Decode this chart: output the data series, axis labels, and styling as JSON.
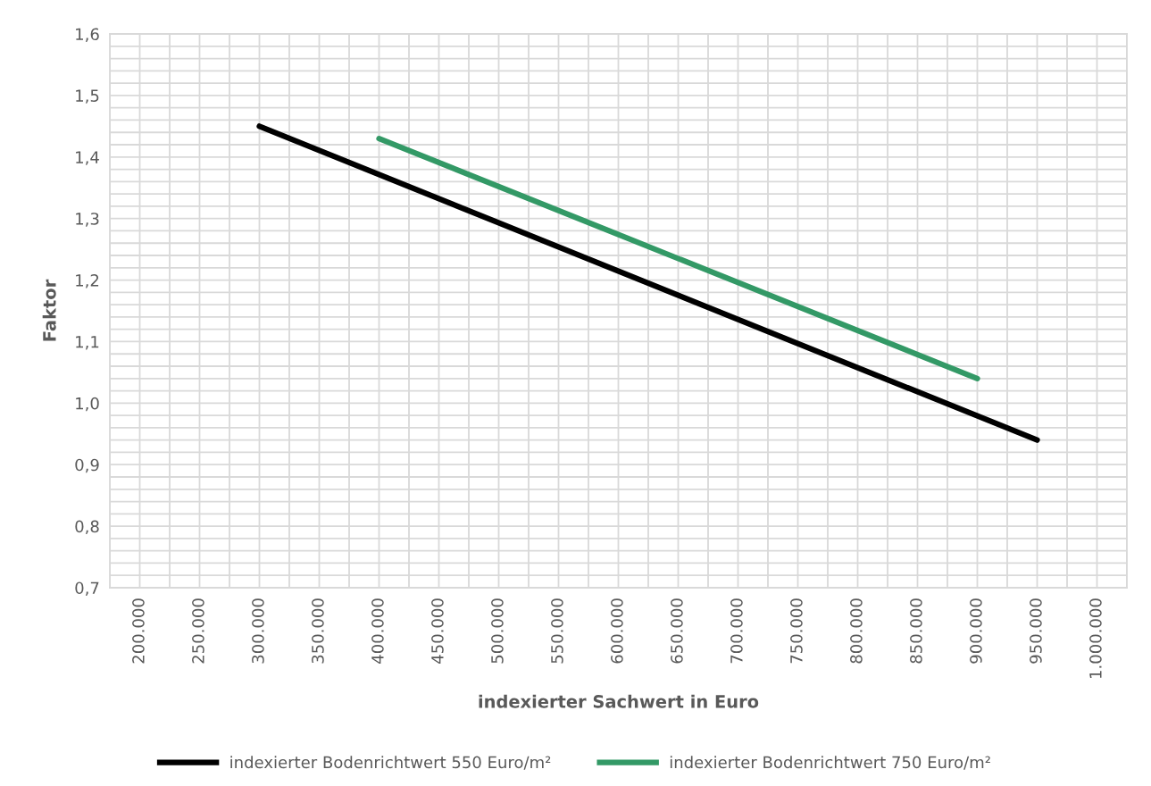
{
  "chart_data": {
    "type": "line",
    "xlabel": "indexierter Sachwert in Euro",
    "ylabel": "Faktor",
    "xlim": [
      175000,
      1025000
    ],
    "xticks": [
      {
        "value": 175000,
        "label": null
      },
      {
        "value": 200000,
        "label": "200.000"
      },
      {
        "value": 225000,
        "label": null
      },
      {
        "value": 250000,
        "label": "250.000"
      },
      {
        "value": 275000,
        "label": null
      },
      {
        "value": 300000,
        "label": "300.000"
      },
      {
        "value": 325000,
        "label": null
      },
      {
        "value": 350000,
        "label": "350.000"
      },
      {
        "value": 375000,
        "label": null
      },
      {
        "value": 400000,
        "label": "400.000"
      },
      {
        "value": 425000,
        "label": null
      },
      {
        "value": 450000,
        "label": "450.000"
      },
      {
        "value": 475000,
        "label": null
      },
      {
        "value": 500000,
        "label": "500.000"
      },
      {
        "value": 525000,
        "label": null
      },
      {
        "value": 550000,
        "label": "550.000"
      },
      {
        "value": 575000,
        "label": null
      },
      {
        "value": 600000,
        "label": "600.000"
      },
      {
        "value": 625000,
        "label": null
      },
      {
        "value": 650000,
        "label": "650.000"
      },
      {
        "value": 675000,
        "label": null
      },
      {
        "value": 700000,
        "label": "700.000"
      },
      {
        "value": 725000,
        "label": null
      },
      {
        "value": 750000,
        "label": "750.000"
      },
      {
        "value": 775000,
        "label": null
      },
      {
        "value": 800000,
        "label": "800.000"
      },
      {
        "value": 825000,
        "label": null
      },
      {
        "value": 850000,
        "label": "850.000"
      },
      {
        "value": 875000,
        "label": null
      },
      {
        "value": 900000,
        "label": "900.000"
      },
      {
        "value": 925000,
        "label": null
      },
      {
        "value": 950000,
        "label": "950.000"
      },
      {
        "value": 975000,
        "label": null
      },
      {
        "value": 1000000,
        "label": "1.000.000"
      },
      {
        "value": 1025000,
        "label": null
      }
    ],
    "ylim": [
      0.7,
      1.6
    ],
    "yticks": [
      {
        "value": 0.7,
        "label": "0,7"
      },
      {
        "value": 0.72,
        "label": null
      },
      {
        "value": 0.74,
        "label": null
      },
      {
        "value": 0.76,
        "label": null
      },
      {
        "value": 0.78,
        "label": null
      },
      {
        "value": 0.8,
        "label": "0,8"
      },
      {
        "value": 0.82,
        "label": null
      },
      {
        "value": 0.84,
        "label": null
      },
      {
        "value": 0.86,
        "label": null
      },
      {
        "value": 0.88,
        "label": null
      },
      {
        "value": 0.9,
        "label": "0,9"
      },
      {
        "value": 0.92,
        "label": null
      },
      {
        "value": 0.94,
        "label": null
      },
      {
        "value": 0.96,
        "label": null
      },
      {
        "value": 0.98,
        "label": null
      },
      {
        "value": 1.0,
        "label": "1,0"
      },
      {
        "value": 1.02,
        "label": null
      },
      {
        "value": 1.04,
        "label": null
      },
      {
        "value": 1.06,
        "label": null
      },
      {
        "value": 1.08,
        "label": null
      },
      {
        "value": 1.1,
        "label": "1,1"
      },
      {
        "value": 1.12,
        "label": null
      },
      {
        "value": 1.14,
        "label": null
      },
      {
        "value": 1.16,
        "label": null
      },
      {
        "value": 1.18,
        "label": null
      },
      {
        "value": 1.2,
        "label": "1,2"
      },
      {
        "value": 1.22,
        "label": null
      },
      {
        "value": 1.24,
        "label": null
      },
      {
        "value": 1.26,
        "label": null
      },
      {
        "value": 1.28,
        "label": null
      },
      {
        "value": 1.3,
        "label": "1,3"
      },
      {
        "value": 1.32,
        "label": null
      },
      {
        "value": 1.34,
        "label": null
      },
      {
        "value": 1.36,
        "label": null
      },
      {
        "value": 1.38,
        "label": null
      },
      {
        "value": 1.4,
        "label": "1,4"
      },
      {
        "value": 1.42,
        "label": null
      },
      {
        "value": 1.44,
        "label": null
      },
      {
        "value": 1.46,
        "label": null
      },
      {
        "value": 1.48,
        "label": null
      },
      {
        "value": 1.5,
        "label": "1,5"
      },
      {
        "value": 1.52,
        "label": null
      },
      {
        "value": 1.54,
        "label": null
      },
      {
        "value": 1.56,
        "label": null
      },
      {
        "value": 1.58,
        "label": null
      },
      {
        "value": 1.6,
        "label": "1,6"
      }
    ],
    "grid": true,
    "legend": "bottom",
    "marker": "none",
    "line_style": "solid",
    "series": [
      {
        "name": "indexierter Bodenrichtwert 550 Euro/m²",
        "color": "#000000",
        "x": [
          300000,
          950000
        ],
        "values": [
          1.45,
          0.94
        ]
      },
      {
        "name": "indexierter Bodenrichtwert 750 Euro/m²",
        "color": "#339966",
        "x": [
          400000,
          900000
        ],
        "values": [
          1.43,
          1.04
        ]
      }
    ]
  }
}
